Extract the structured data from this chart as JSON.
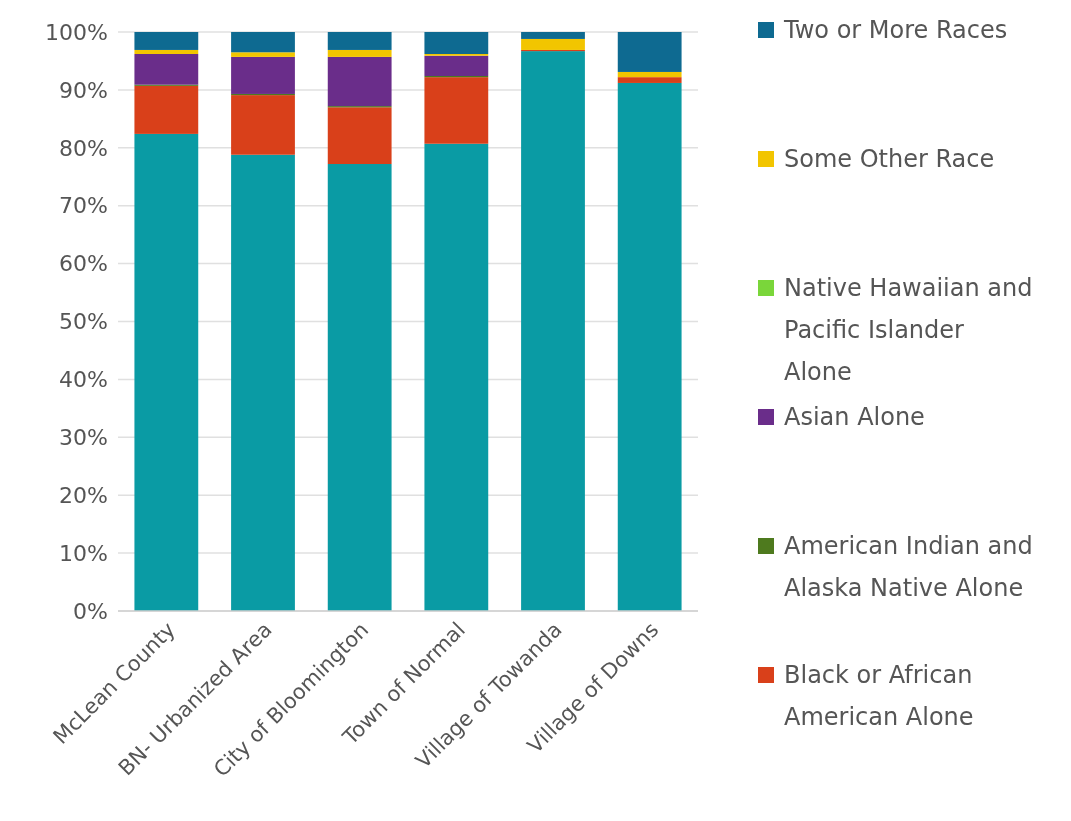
{
  "chart_data": {
    "type": "bar",
    "stacked": true,
    "categories": [
      "McLean County",
      "BN- Urbanized Area",
      "City of Bloomington",
      "Town of Normal",
      "Village of Towanda",
      "Village of Downs"
    ],
    "series": [
      {
        "color": "#0a9ba4",
        "values": [
          82.4,
          78.8,
          77.2,
          80.7,
          96.7,
          91.2
        ]
      },
      {
        "name": "Black or African American Alone",
        "color": "#d9401a",
        "values": [
          8.3,
          10.3,
          9.8,
          11.5,
          0.2,
          1.0
        ]
      },
      {
        "name": "American Indian and Alaska Native Alone",
        "color": "#4e7a1e",
        "values": [
          0.2,
          0.2,
          0.2,
          0.2,
          0,
          0
        ]
      },
      {
        "name": "Asian Alone",
        "color": "#6a2d8a",
        "values": [
          5.3,
          6.4,
          8.5,
          3.5,
          0,
          0
        ]
      },
      {
        "name": "Native Hawaiian and Pacific Islander Alone",
        "color": "#7ad63a",
        "values": [
          0,
          0,
          0,
          0,
          0,
          0
        ]
      },
      {
        "name": "Some Other Race",
        "color": "#f2c500",
        "values": [
          0.7,
          0.8,
          1.2,
          0.3,
          1.9,
          0.9
        ]
      },
      {
        "name": "Two or More Races",
        "color": "#0e6a91",
        "values": [
          3.1,
          3.5,
          3.1,
          3.8,
          1.2,
          6.9
        ]
      }
    ],
    "ylim": [
      0,
      100
    ],
    "yticks": [
      {
        "value": 0,
        "label": "0%"
      },
      {
        "value": 10,
        "label": "10%"
      },
      {
        "value": 20,
        "label": "20%"
      },
      {
        "value": 30,
        "label": "30%"
      },
      {
        "value": 40,
        "label": "40%"
      },
      {
        "value": 50,
        "label": "50%"
      },
      {
        "value": 60,
        "label": "60%"
      },
      {
        "value": 70,
        "label": "70%"
      },
      {
        "value": 80,
        "label": "80%"
      },
      {
        "value": 90,
        "label": "90%"
      },
      {
        "value": 100,
        "label": "100%"
      }
    ],
    "grid": "y",
    "legend": "right"
  }
}
